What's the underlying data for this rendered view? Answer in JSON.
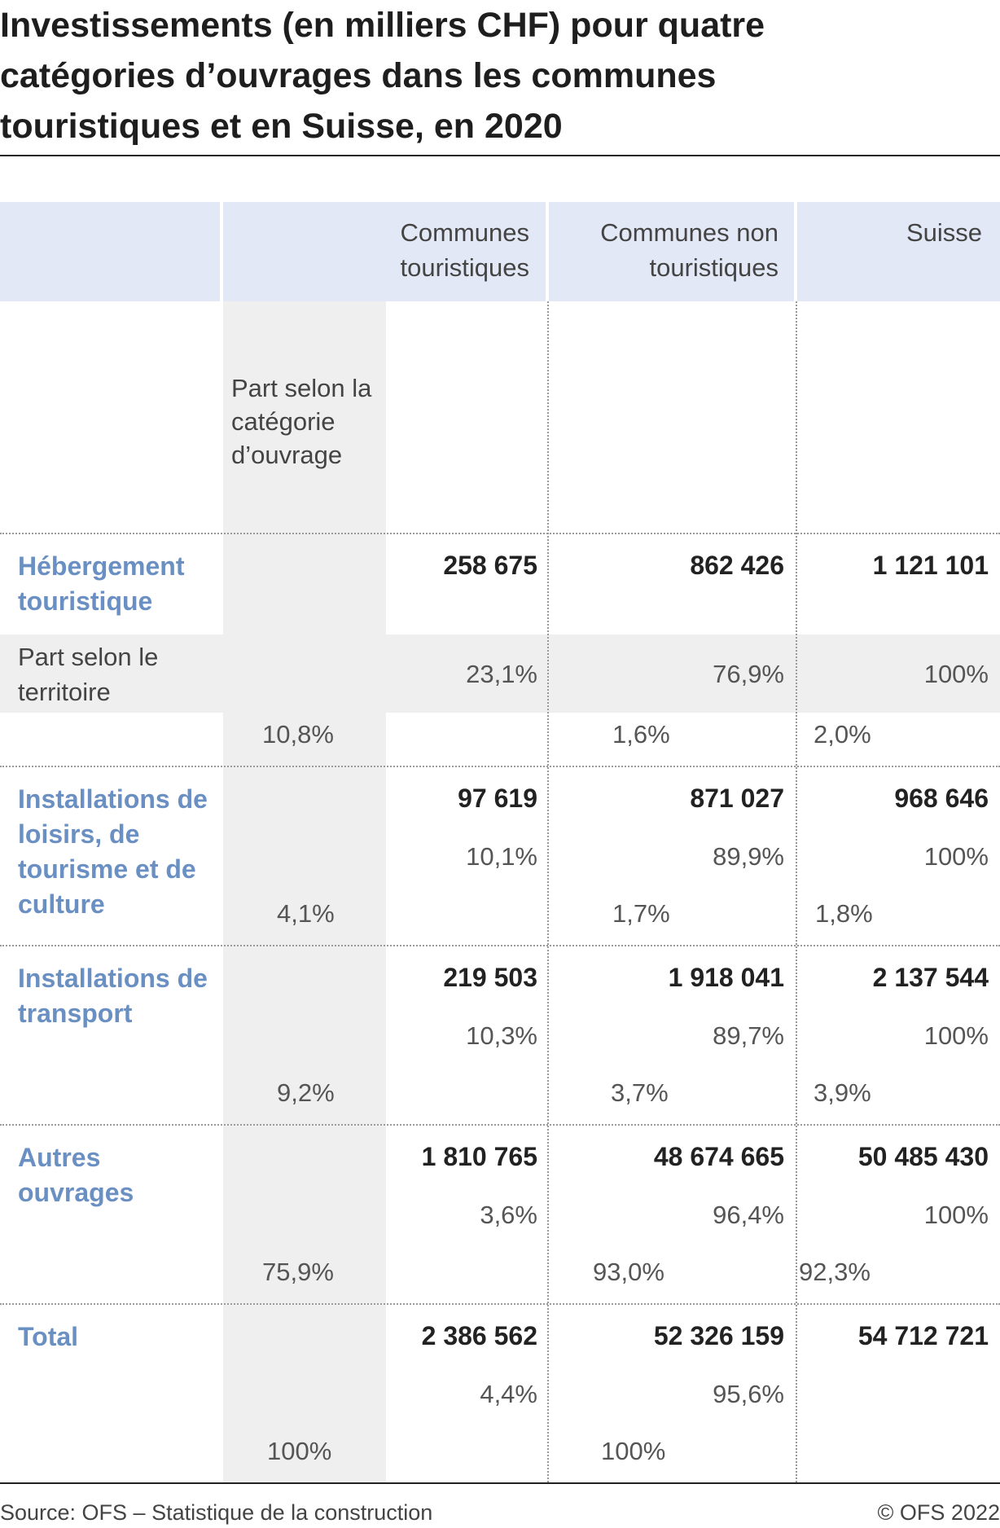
{
  "title": "Investissements (en milliers CHF) pour quatre catégories d’ouvrages dans les communes touristiques et en Suisse, en 2020",
  "header": {
    "col_tour": "Communes touristiques",
    "col_nontour": "Communes non touristiques",
    "col_suisse": "Suisse",
    "share_category_label": "Part selon la catégorie d’ouvrage",
    "share_territory_label": "Part selon le territoire"
  },
  "rows": [
    {
      "label": "Hébergement touristique",
      "tour": "258 675",
      "nontour": "862 426",
      "suisse": "1 121 101",
      "tour_pct": "23,1%",
      "nontour_pct": "76,9%",
      "suisse_pct": "100%",
      "cat_share": "10,8%",
      "nontour_cat_share": "1,6%",
      "suisse_cat_share": "2,0%"
    },
    {
      "label": "Installations de loisirs, de tourisme et de culture",
      "tour": "97 619",
      "nontour": "871 027",
      "suisse": "968 646",
      "tour_pct": "10,1%",
      "nontour_pct": "89,9%",
      "suisse_pct": "100%",
      "cat_share": "4,1%",
      "nontour_cat_share": "1,7%",
      "suisse_cat_share": "1,8%"
    },
    {
      "label": "Installations de transport",
      "tour": "219 503",
      "nontour": "1 918 041",
      "suisse": "2 137 544",
      "tour_pct": "10,3%",
      "nontour_pct": "89,7%",
      "suisse_pct": "100%",
      "cat_share": "9,2%",
      "nontour_cat_share": "3,7%",
      "suisse_cat_share": "3,9%"
    },
    {
      "label": "Autres ouvrages",
      "tour": "1 810 765",
      "nontour": "48 674 665",
      "suisse": "50 485 430",
      "tour_pct": "3,6%",
      "nontour_pct": "96,4%",
      "suisse_pct": "100%",
      "cat_share": "75,9%",
      "nontour_cat_share": "93,0%",
      "suisse_cat_share": "92,3%"
    },
    {
      "label": "Total",
      "tour": "2 386 562",
      "nontour": "52 326 159",
      "suisse": "54 712 721",
      "tour_pct": "4,4%",
      "nontour_pct": "95,6%",
      "cat_share": "100%",
      "nontour_cat_share": "100%"
    }
  ],
  "footer": {
    "source": "Source: OFS – Statistique de la construction",
    "copyright": "© OFS 2022"
  },
  "colors": {
    "header_bg": "#e2e8f5",
    "share_bg": "#efefef",
    "label_blue": "#6a8fc2"
  }
}
